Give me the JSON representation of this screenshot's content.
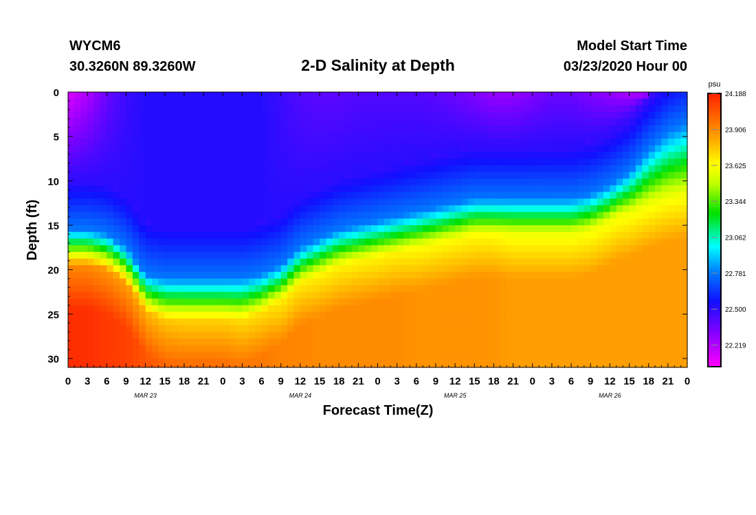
{
  "header": {
    "station_id": "WYCM6",
    "station_coords": "30.3260N 89.3260W",
    "title": "2-D Salinity at Depth",
    "run_label": "Model Start Time",
    "run_time": "03/23/2020 Hour 00"
  },
  "colorbar": {
    "unit": "psu",
    "tick_labels": [
      "24.188",
      "23.906",
      "23.625",
      "23.344",
      "23.062",
      "22.781",
      "22.500",
      "22.219"
    ],
    "min": 22.05,
    "max": 24.188
  },
  "chart_data": {
    "type": "heatmap",
    "xlabel": "Forecast Time(Z)",
    "ylabel": "Depth (ft)",
    "x_range_hours": [
      0,
      96
    ],
    "y_range": [
      0,
      31
    ],
    "y_inverted": true,
    "x_tick_labels": [
      "0",
      "3",
      "6",
      "9",
      "12",
      "15",
      "18",
      "21",
      "0",
      "3",
      "6",
      "9",
      "12",
      "15",
      "18",
      "21",
      "0",
      "3",
      "6",
      "9",
      "12",
      "15",
      "18",
      "21",
      "0",
      "3",
      "6",
      "9",
      "12",
      "15",
      "18",
      "21",
      "0"
    ],
    "y_tick_labels": [
      "0",
      "5",
      "10",
      "15",
      "20",
      "25",
      "30"
    ],
    "y_tick_values": [
      0,
      5,
      10,
      15,
      20,
      25,
      30
    ],
    "date_labels": [
      "MAR 23",
      "MAR 24",
      "MAR 25",
      "MAR 26"
    ],
    "layers_note_values_psu": {
      "forecast_hours": [
        0,
        3,
        6,
        9,
        12,
        15,
        18,
        21,
        24,
        27,
        30,
        33,
        36,
        39,
        42,
        45,
        48,
        51,
        54,
        57,
        60,
        63,
        66,
        69,
        72,
        75,
        78,
        81,
        84,
        87,
        90,
        93,
        96
      ],
      "surface_psu": [
        22.1,
        22.2,
        22.35,
        22.45,
        22.5,
        22.5,
        22.5,
        22.5,
        22.5,
        22.5,
        22.5,
        22.45,
        22.4,
        22.38,
        22.38,
        22.4,
        22.4,
        22.4,
        22.4,
        22.38,
        22.35,
        22.3,
        22.25,
        22.25,
        22.3,
        22.35,
        22.35,
        22.3,
        22.25,
        22.2,
        22.15,
        22.3,
        22.45
      ],
      "halocline_top_ft": [
        15.5,
        15.5,
        16.0,
        17.5,
        20.5,
        21.0,
        21.0,
        21.0,
        21.0,
        21.0,
        20.5,
        19.5,
        17.5,
        16.5,
        15.5,
        15.0,
        14.5,
        14.0,
        13.5,
        13.0,
        12.5,
        12.0,
        12.0,
        12.0,
        12.0,
        12.0,
        12.0,
        11.5,
        10.5,
        9.0,
        6.5,
        4.5,
        3.5
      ],
      "bottom_psu": [
        24.15,
        24.15,
        24.12,
        24.1,
        24.05,
        24.0,
        23.98,
        23.98,
        23.98,
        23.95,
        23.95,
        23.92,
        23.92,
        23.9,
        23.9,
        23.9,
        23.9,
        23.9,
        23.88,
        23.88,
        23.88,
        23.88,
        23.88,
        23.85,
        23.85,
        23.85,
        23.85,
        23.85,
        23.85,
        23.85,
        23.85,
        23.85,
        23.85
      ]
    }
  }
}
